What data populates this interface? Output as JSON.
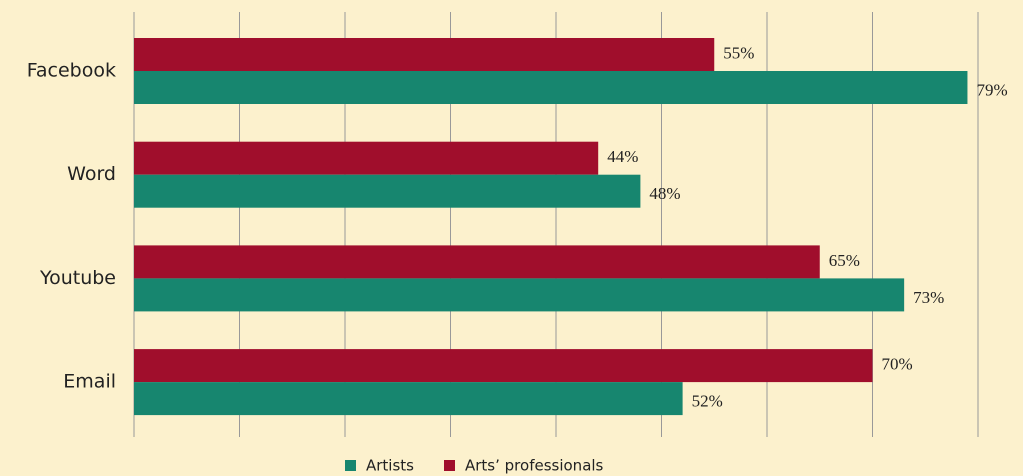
{
  "chart_data": {
    "type": "bar",
    "orientation": "horizontal",
    "categories": [
      "Facebook",
      "Word",
      "Youtube",
      "Email"
    ],
    "series": [
      {
        "name": "Artists",
        "color": "#17866f",
        "values": [
          79,
          48,
          73,
          52
        ],
        "value_labels": [
          "79%",
          "48%",
          "73%",
          "52%"
        ]
      },
      {
        "name": "Arts’ professionals",
        "color": "#a00e2c",
        "values": [
          55,
          44,
          65,
          70
        ],
        "value_labels": [
          "55%",
          "44%",
          "65%",
          "70%"
        ]
      }
    ],
    "xlim": [
      0,
      80
    ],
    "xticks": [
      0,
      10,
      20,
      30,
      40,
      50,
      60,
      70,
      80
    ],
    "grid": true,
    "legend": "bottom"
  }
}
